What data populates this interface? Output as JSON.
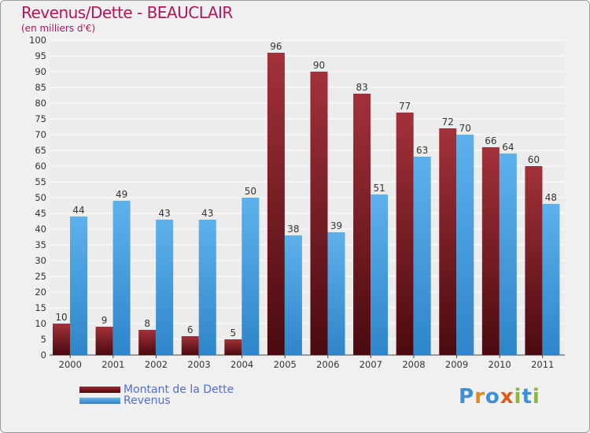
{
  "title": "Revenus/Dette - BEAUCLAIR",
  "subtitle": "(en milliers d'€)",
  "logo_text": "Proxiti",
  "colors": {
    "title": "#b3155a",
    "debt": "#7a1a1f",
    "revenue": "#4aa3e0",
    "legend_text": "#4f6fd6"
  },
  "chart_data": {
    "type": "bar",
    "title": "Revenus/Dette - BEAUCLAIR",
    "subtitle": "(en milliers d'€)",
    "xlabel": "",
    "ylabel": "",
    "ylim": [
      0,
      100
    ],
    "y_ticks": [
      0,
      5,
      10,
      15,
      20,
      25,
      30,
      35,
      40,
      45,
      50,
      55,
      60,
      65,
      70,
      75,
      80,
      85,
      90,
      95,
      100
    ],
    "grid": true,
    "legend_position": "bottom-left",
    "categories": [
      "2000",
      "2001",
      "2002",
      "2003",
      "2004",
      "2005",
      "2006",
      "2007",
      "2008",
      "2009",
      "2010",
      "2011"
    ],
    "series": [
      {
        "name": "Montant de la Dette",
        "color": "#7a1a1f",
        "values": [
          10,
          9,
          8,
          6,
          5,
          96,
          90,
          83,
          77,
          72,
          66,
          60
        ]
      },
      {
        "name": "Revenus",
        "color": "#4aa3e0",
        "values": [
          44,
          49,
          43,
          43,
          50,
          38,
          39,
          51,
          63,
          70,
          64,
          48
        ]
      }
    ]
  }
}
